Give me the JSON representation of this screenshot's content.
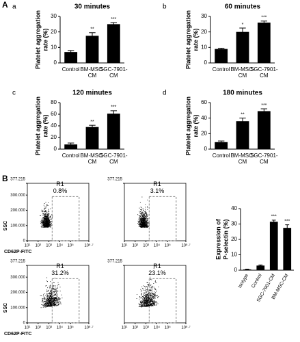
{
  "labels": {
    "panel_a": "A",
    "panel_b": "B"
  },
  "chart_data": [
    {
      "type": "bar",
      "panel": "a",
      "title": "30 minutes",
      "ylabel": [
        "Platelet aggregation",
        "rate (%)"
      ],
      "categories": [
        [
          "Control"
        ],
        [
          "BM-MSC-",
          "CM"
        ],
        [
          "SGC-7901-",
          "CM"
        ]
      ],
      "values": [
        7,
        17.5,
        25
      ],
      "errors": [
        1,
        2,
        1
      ],
      "annotations": [
        null,
        "**",
        "***"
      ],
      "ylim": [
        0,
        30
      ],
      "yticks": [
        0,
        10,
        20,
        30
      ],
      "color": "#000000"
    },
    {
      "type": "bar",
      "panel": "b",
      "title": "60 minutes",
      "ylabel": [
        "Platelet aggregation",
        "rate (%)"
      ],
      "categories": [
        [
          "Control"
        ],
        [
          "BM-MSC-",
          "CM"
        ],
        [
          "SGC-7901-",
          "CM"
        ]
      ],
      "values": [
        9,
        20,
        26
      ],
      "errors": [
        0.5,
        2.5,
        1
      ],
      "annotations": [
        null,
        "*",
        "***"
      ],
      "ylim": [
        0,
        30
      ],
      "yticks": [
        0,
        10,
        20,
        30
      ],
      "color": "#000000"
    },
    {
      "type": "bar",
      "panel": "c",
      "title": "120 minutes",
      "ylabel": [
        "Platelet aggregation",
        "rate (%)"
      ],
      "categories": [
        [
          "Control"
        ],
        [
          "BM-MSC-",
          "CM"
        ],
        [
          "SGC-7901-",
          "CM"
        ]
      ],
      "values": [
        8,
        38,
        61
      ],
      "errors": [
        2.5,
        3,
        5
      ],
      "annotations": [
        null,
        "**",
        "***"
      ],
      "ylim": [
        0,
        80
      ],
      "yticks": [
        0,
        20,
        40,
        60,
        80
      ],
      "color": "#000000"
    },
    {
      "type": "bar",
      "panel": "d",
      "title": "180 minutes",
      "ylabel": [
        "Platelet aggregation",
        "rate (%)"
      ],
      "categories": [
        [
          "Control"
        ],
        [
          "BM-MSC-",
          "CM"
        ],
        [
          "SGC-7901-",
          "CM"
        ]
      ],
      "values": [
        9,
        36,
        49
      ],
      "errors": [
        1.5,
        4,
        3
      ],
      "annotations": [
        null,
        "**",
        "***"
      ],
      "ylim": [
        0,
        60
      ],
      "yticks": [
        0,
        20,
        40,
        60
      ],
      "color": "#000000"
    },
    {
      "type": "flow",
      "gate": "R1",
      "percent": "0.8%",
      "ylabel": "SSC",
      "xlabel": "CD62P-FITC",
      "ylim": [
        0,
        377215
      ],
      "xlim": [
        1,
        6.7
      ],
      "yticks": [
        {
          "value": 377215,
          "label": "377.215"
        },
        {
          "value": 300000,
          "label": "300.000"
        },
        {
          "value": 200000,
          "label": "200.000"
        },
        {
          "value": 100000,
          "label": "100.000"
        },
        0
      ],
      "xticks": [
        {
          "value": 1,
          "label": "10¹"
        },
        {
          "value": 2,
          "label": "10²"
        },
        {
          "value": 3,
          "label": "10³"
        },
        {
          "value": 4,
          "label": "10⁴"
        },
        {
          "value": 5,
          "label": "10⁵"
        },
        {
          "value": 6.7,
          "label": "10⁶·⁷"
        }
      ]
    },
    {
      "type": "flow",
      "gate": "R1",
      "percent": "3.1%",
      "ylim": [
        0,
        377215
      ],
      "xlim": [
        1,
        6.7
      ],
      "yticks": [
        {
          "value": 377215,
          "label": "377.215"
        }
      ],
      "xticks": [
        {
          "value": 1,
          "label": "10¹"
        },
        {
          "value": 2,
          "label": "10²"
        },
        {
          "value": 3,
          "label": "10³"
        },
        {
          "value": 4,
          "label": "10⁴"
        },
        {
          "value": 5,
          "label": "10⁵"
        },
        {
          "value": 6.7,
          "label": "10⁶·⁷"
        }
      ]
    },
    {
      "type": "flow",
      "gate": "R1",
      "percent": "31.2%",
      "ylabel": "SSC",
      "xlabel": "CD62P-FITC",
      "ylim": [
        0,
        377215
      ],
      "xlim": [
        1,
        6.7
      ],
      "yticks": [
        {
          "value": 377215,
          "label": "377.215"
        },
        {
          "value": 300000,
          "label": "300.000"
        },
        {
          "value": 200000,
          "label": "200.000"
        },
        {
          "value": 100000,
          "label": "100.000"
        },
        0
      ],
      "xticks": [
        {
          "value": 1,
          "label": "10¹"
        },
        {
          "value": 2,
          "label": "10²"
        },
        {
          "value": 3,
          "label": "10³"
        },
        {
          "value": 4,
          "label": "10⁴"
        },
        {
          "value": 5,
          "label": "10⁵"
        },
        {
          "value": 6.7,
          "label": "10⁶·⁷"
        }
      ]
    },
    {
      "type": "flow",
      "gate": "R1",
      "percent": "23.1%",
      "ylim": [
        0,
        377215
      ],
      "xlim": [
        1,
        6.7
      ],
      "yticks": [
        {
          "value": 377215,
          "label": "377.215"
        }
      ],
      "xticks": [
        {
          "value": 1,
          "label": "10¹"
        },
        {
          "value": 2,
          "label": "10²"
        },
        {
          "value": 3,
          "label": "10³"
        },
        {
          "value": 4,
          "label": "10⁴"
        },
        {
          "value": 5,
          "label": "10⁵"
        },
        {
          "value": 6.7,
          "label": "10⁶·⁷"
        }
      ]
    },
    {
      "type": "bar",
      "ylabel": [
        "Expression of",
        "P-selectin (%)"
      ],
      "rotated": true,
      "categories": [
        [
          "Isotype"
        ],
        [
          "Control"
        ],
        [
          "SGC-7901-CM"
        ],
        [
          "BM-MSC-CM"
        ]
      ],
      "values": [
        0.5,
        3,
        31.5,
        27.5
      ],
      "errors": [
        0.2,
        0.4,
        1,
        2
      ],
      "annotations": [
        null,
        null,
        "***",
        "***"
      ],
      "ylim": [
        0,
        40
      ],
      "yticks": [
        0,
        10,
        20,
        30,
        40
      ],
      "color": "#000000"
    }
  ]
}
